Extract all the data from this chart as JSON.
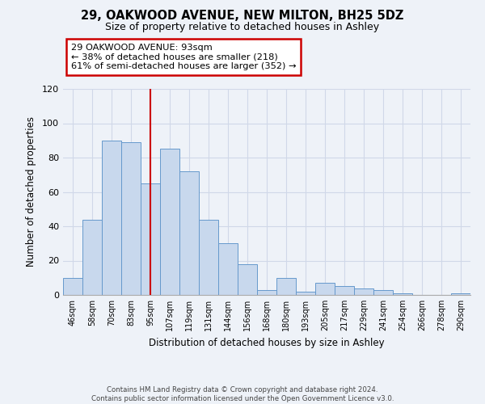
{
  "title": "29, OAKWOOD AVENUE, NEW MILTON, BH25 5DZ",
  "subtitle": "Size of property relative to detached houses in Ashley",
  "xlabel": "Distribution of detached houses by size in Ashley",
  "ylabel": "Number of detached properties",
  "categories": [
    "46sqm",
    "58sqm",
    "70sqm",
    "83sqm",
    "95sqm",
    "107sqm",
    "119sqm",
    "131sqm",
    "144sqm",
    "156sqm",
    "168sqm",
    "180sqm",
    "193sqm",
    "205sqm",
    "217sqm",
    "229sqm",
    "241sqm",
    "254sqm",
    "266sqm",
    "278sqm",
    "290sqm"
  ],
  "values": [
    10,
    44,
    90,
    89,
    65,
    85,
    72,
    44,
    30,
    18,
    3,
    10,
    2,
    7,
    5,
    4,
    3,
    1,
    0,
    0,
    1
  ],
  "bar_color": "#c8d8ed",
  "bar_edge_color": "#6699cc",
  "vline_x_index": 4,
  "vline_color": "#cc0000",
  "annotation_title": "29 OAKWOOD AVENUE: 93sqm",
  "annotation_line1": "← 38% of detached houses are smaller (218)",
  "annotation_line2": "61% of semi-detached houses are larger (352) →",
  "annotation_box_color": "#ffffff",
  "annotation_box_edge": "#cc0000",
  "ylim": [
    0,
    120
  ],
  "yticks": [
    0,
    20,
    40,
    60,
    80,
    100,
    120
  ],
  "footer1": "Contains HM Land Registry data © Crown copyright and database right 2024.",
  "footer2": "Contains public sector information licensed under the Open Government Licence v3.0.",
  "background_color": "#eef2f8",
  "grid_color": "#d0d8e8"
}
